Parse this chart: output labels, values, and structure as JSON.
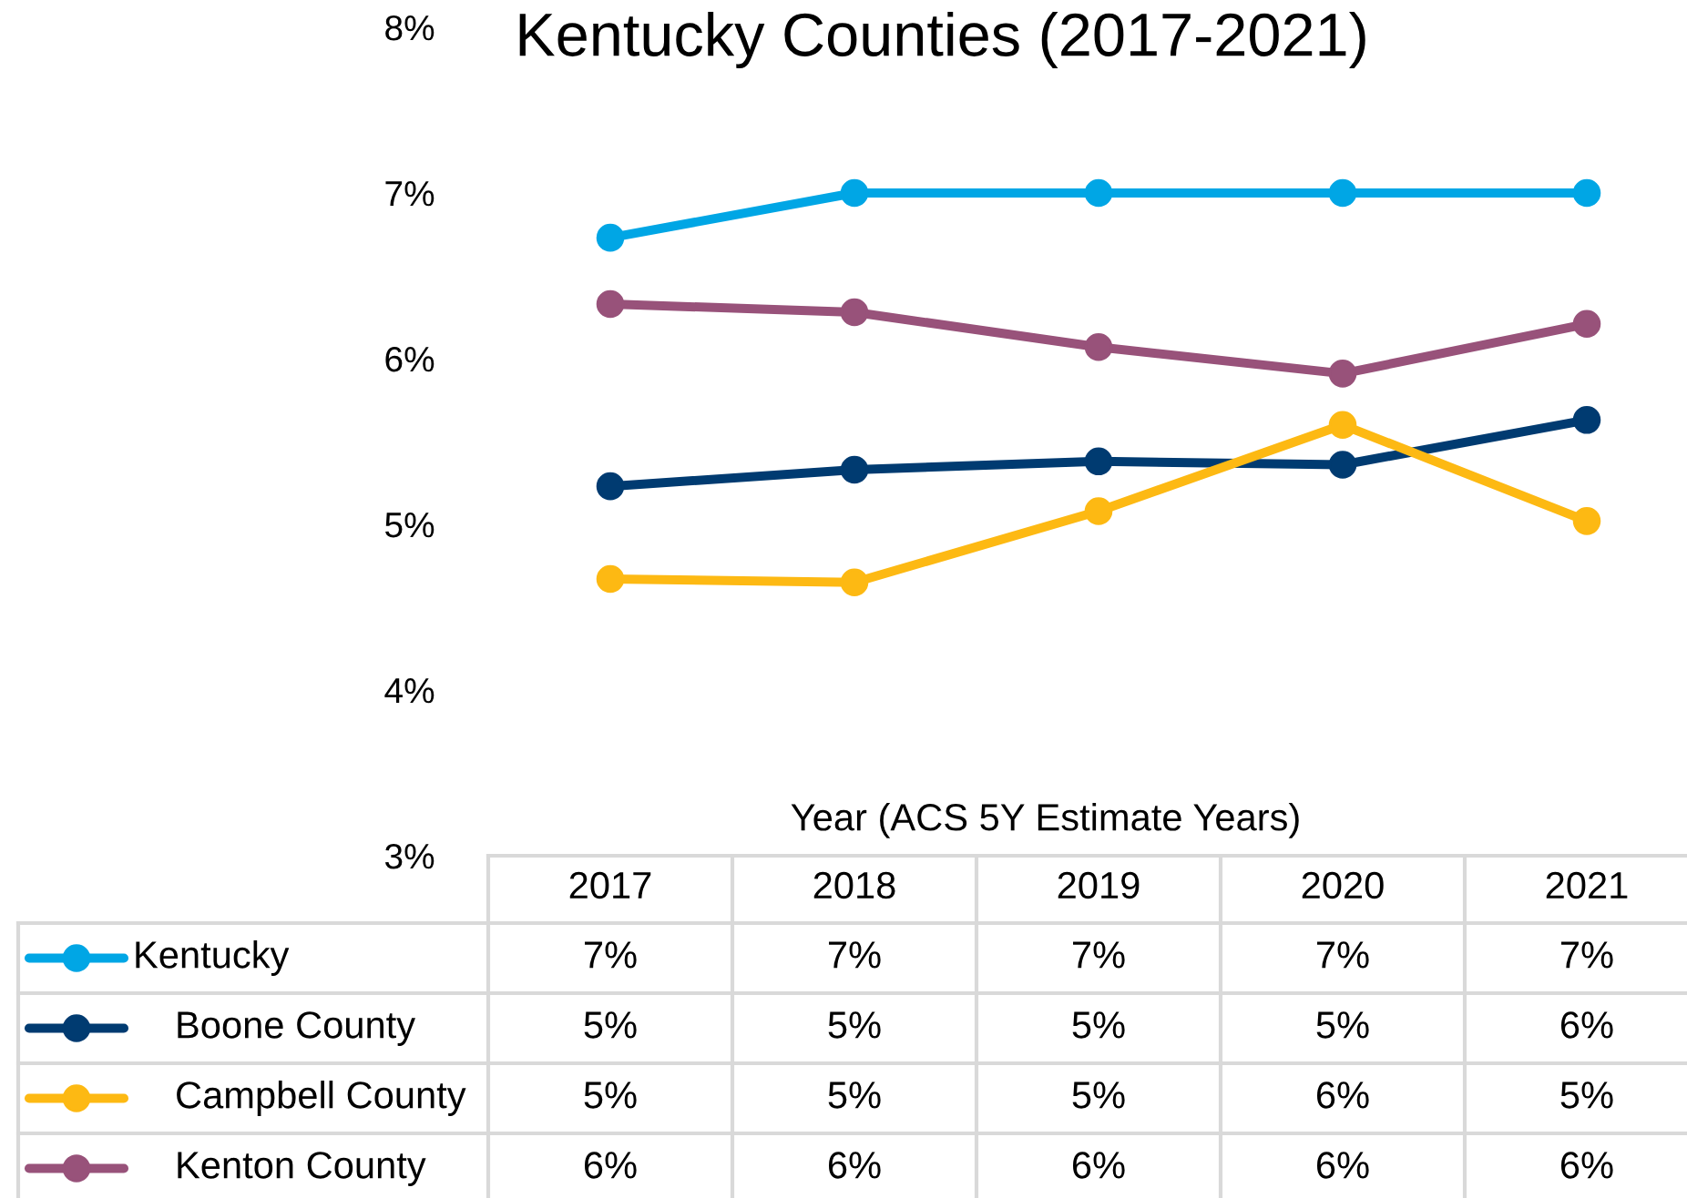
{
  "chart_data": {
    "type": "line",
    "title": "Kentucky Counties (2017-2021)",
    "xlabel": "Year (ACS 5Y Estimate Years)",
    "categories": [
      "2017",
      "2018",
      "2019",
      "2020",
      "2021"
    ],
    "series": [
      {
        "name": "Kentucky",
        "color": "#00a6e5",
        "values": [
          6.73,
          7.0,
          7.0,
          7.0,
          7.0
        ],
        "value_labels": [
          "7%",
          "7%",
          "7%",
          "7%",
          "7%"
        ]
      },
      {
        "name": "Boone County",
        "color": "#003b71",
        "values": [
          5.23,
          5.33,
          5.38,
          5.36,
          5.63
        ],
        "value_labels": [
          "5%",
          "5%",
          "5%",
          "5%",
          "6%"
        ]
      },
      {
        "name": "Campbell County",
        "color": "#fdb913",
        "values": [
          4.67,
          4.65,
          5.08,
          5.6,
          5.02
        ],
        "value_labels": [
          "5%",
          "5%",
          "5%",
          "6%",
          "5%"
        ]
      },
      {
        "name": "Kenton County",
        "color": "#98527a",
        "values": [
          6.33,
          6.28,
          6.07,
          5.91,
          6.21
        ],
        "value_labels": [
          "6%",
          "6%",
          "6%",
          "6%",
          "6%"
        ]
      }
    ],
    "ylim": [
      3,
      8
    ],
    "yticks": [
      {
        "value": 3,
        "label": "3%"
      },
      {
        "value": 4,
        "label": "4%"
      },
      {
        "value": 5,
        "label": "5%"
      },
      {
        "value": 6,
        "label": "6%"
      },
      {
        "value": 7,
        "label": "7%"
      },
      {
        "value": 8,
        "label": "8%"
      }
    ],
    "legend": "bottom",
    "marker": "circle",
    "line_style": "solid"
  }
}
